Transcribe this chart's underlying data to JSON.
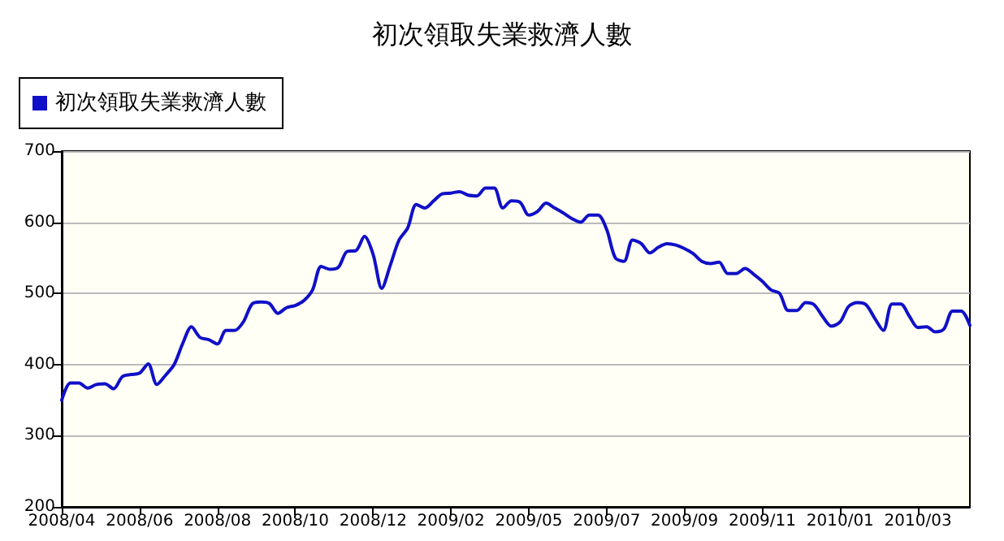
{
  "chart_data": {
    "type": "line",
    "title": "初次領取失業救濟人數",
    "categories": [
      "2008/04",
      null,
      null,
      null,
      null,
      null,
      null,
      null,
      null,
      "2008/06",
      null,
      null,
      null,
      null,
      null,
      null,
      null,
      null,
      "2008/08",
      null,
      null,
      null,
      null,
      null,
      null,
      null,
      null,
      "2008/10",
      null,
      null,
      null,
      null,
      null,
      null,
      null,
      null,
      "2008/12",
      null,
      null,
      null,
      null,
      null,
      null,
      null,
      null,
      "2009/02",
      null,
      null,
      null,
      null,
      null,
      null,
      null,
      null,
      "2009/05",
      null,
      null,
      null,
      null,
      null,
      null,
      null,
      null,
      "2009/07",
      null,
      null,
      null,
      null,
      null,
      null,
      null,
      null,
      "2009/09",
      null,
      null,
      null,
      null,
      null,
      null,
      null,
      null,
      "2009/11",
      null,
      null,
      null,
      null,
      null,
      null,
      null,
      null,
      "2010/01",
      null,
      null,
      null,
      null,
      null,
      null,
      null,
      null,
      "2010/03",
      null,
      null,
      null,
      null,
      null,
      null
    ],
    "series": [
      {
        "name": "初次領取失業救濟人數",
        "color": "#1010c8",
        "values": [
          350,
          374,
          374,
          367,
          372,
          373,
          366,
          383,
          386,
          388,
          401,
          372,
          385,
          400,
          430,
          453,
          438,
          435,
          429,
          448,
          448,
          460,
          485,
          488,
          486,
          472,
          480,
          483,
          490,
          505,
          538,
          534,
          537,
          559,
          560,
          580,
          555,
          507,
          540,
          575,
          592,
          625,
          620,
          630,
          640,
          641,
          643,
          638,
          637,
          648,
          648,
          620,
          630,
          628,
          610,
          615,
          627,
          620,
          613,
          605,
          600,
          610,
          610,
          590,
          550,
          545,
          575,
          570,
          557,
          565,
          570,
          568,
          563,
          556,
          545,
          542,
          544,
          528,
          528,
          535,
          527,
          517,
          505,
          500,
          476,
          476,
          487,
          484,
          467,
          454,
          460,
          482,
          487,
          484,
          465,
          448,
          485,
          485,
          468,
          452,
          453,
          446,
          450,
          475,
          475,
          455
        ]
      }
    ],
    "ylim": [
      200,
      700
    ],
    "yticks": [
      200,
      300,
      400,
      500,
      600,
      700
    ],
    "grid": "y",
    "legend": "top left",
    "marker": "none",
    "line_style": "solid"
  }
}
